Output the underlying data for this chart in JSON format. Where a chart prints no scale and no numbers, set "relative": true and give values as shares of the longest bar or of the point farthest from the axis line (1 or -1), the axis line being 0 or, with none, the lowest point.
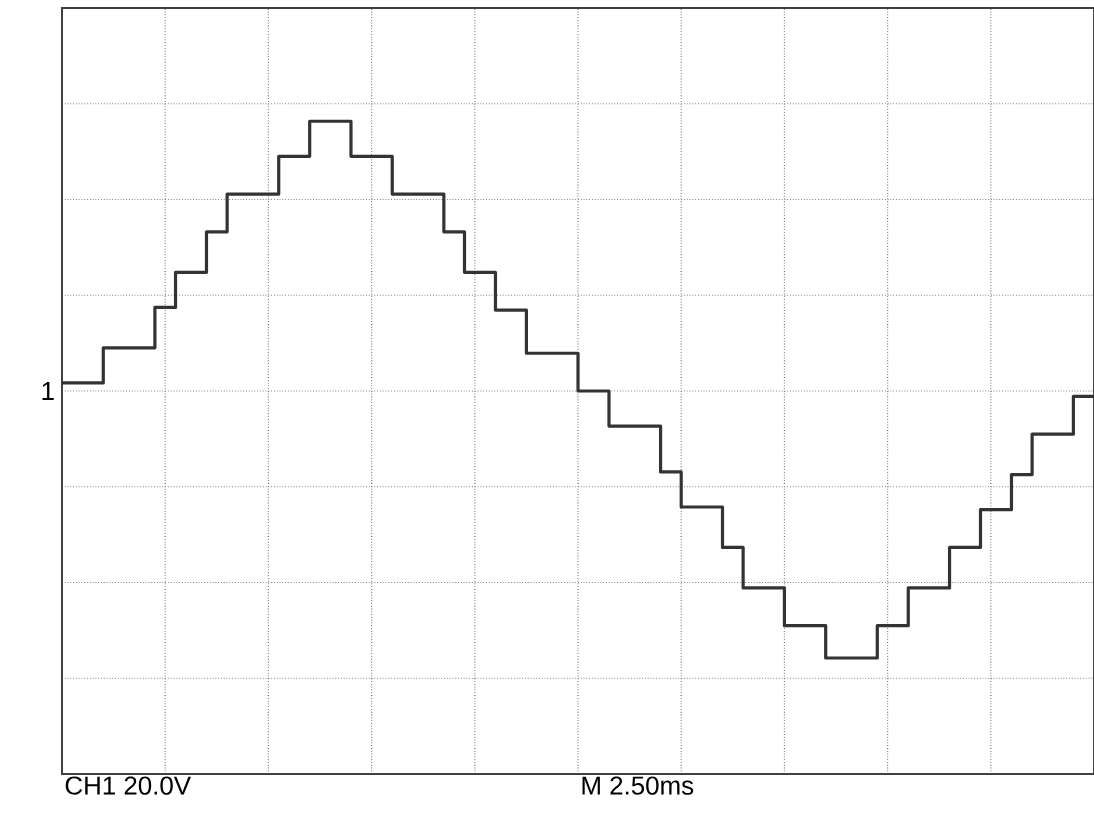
{
  "chart_data": {
    "type": "step",
    "relative": true,
    "color": "#333333",
    "grid": true,
    "categories": [
      null,
      null,
      null,
      null,
      null,
      null,
      null,
      null,
      null,
      null,
      null,
      null,
      null,
      null,
      null,
      null,
      null,
      null,
      null,
      null,
      null,
      null,
      null,
      null,
      null,
      null,
      null,
      null,
      null,
      null,
      null,
      null,
      null,
      null,
      null,
      null,
      null,
      null,
      null,
      null,
      null,
      null,
      null,
      null,
      null,
      null,
      null,
      null,
      null,
      null,
      null,
      null,
      null,
      null,
      null,
      null,
      null,
      null,
      null,
      null,
      null,
      null,
      null,
      null,
      null,
      null,
      null,
      null,
      null,
      null,
      null,
      null,
      null,
      null,
      null,
      null,
      null,
      null,
      null,
      null,
      null,
      null,
      null,
      null,
      null,
      null,
      null,
      null,
      null,
      null,
      null,
      null,
      null,
      null,
      null,
      null,
      null,
      null,
      null,
      null,
      null
    ],
    "values": [
      0.03,
      0.03,
      0.03,
      0.03,
      0.16,
      0.16,
      0.16,
      0.16,
      0.16,
      0.31,
      0.31,
      0.44,
      0.44,
      0.44,
      0.59,
      0.59,
      0.73,
      0.73,
      0.73,
      0.73,
      0.73,
      0.87,
      0.87,
      0.87,
      1,
      1,
      1,
      1,
      0.87,
      0.87,
      0.87,
      0.87,
      0.73,
      0.73,
      0.73,
      0.73,
      0.73,
      0.59,
      0.59,
      0.44,
      0.44,
      0.44,
      0.3,
      0.3,
      0.3,
      0.14,
      0.14,
      0.14,
      0.14,
      0.14,
      0,
      0,
      0,
      -0.13,
      -0.13,
      -0.13,
      -0.13,
      -0.13,
      -0.3,
      -0.3,
      -0.43,
      -0.43,
      -0.43,
      -0.43,
      -0.58,
      -0.58,
      -0.73,
      -0.73,
      -0.73,
      -0.73,
      -0.87,
      -0.87,
      -0.87,
      -0.87,
      -0.99,
      -0.99,
      -0.99,
      -0.99,
      -0.99,
      -0.87,
      -0.87,
      -0.87,
      -0.73,
      -0.73,
      -0.73,
      -0.73,
      -0.58,
      -0.58,
      -0.58,
      -0.44,
      -0.44,
      -0.44,
      -0.31,
      -0.31,
      -0.16,
      -0.16,
      -0.16,
      -0.16,
      -0.02,
      -0.02,
      -0.02
    ],
    "annotations": [
      "CH1  20.0V",
      "M 2.50ms",
      "1"
    ]
  }
}
